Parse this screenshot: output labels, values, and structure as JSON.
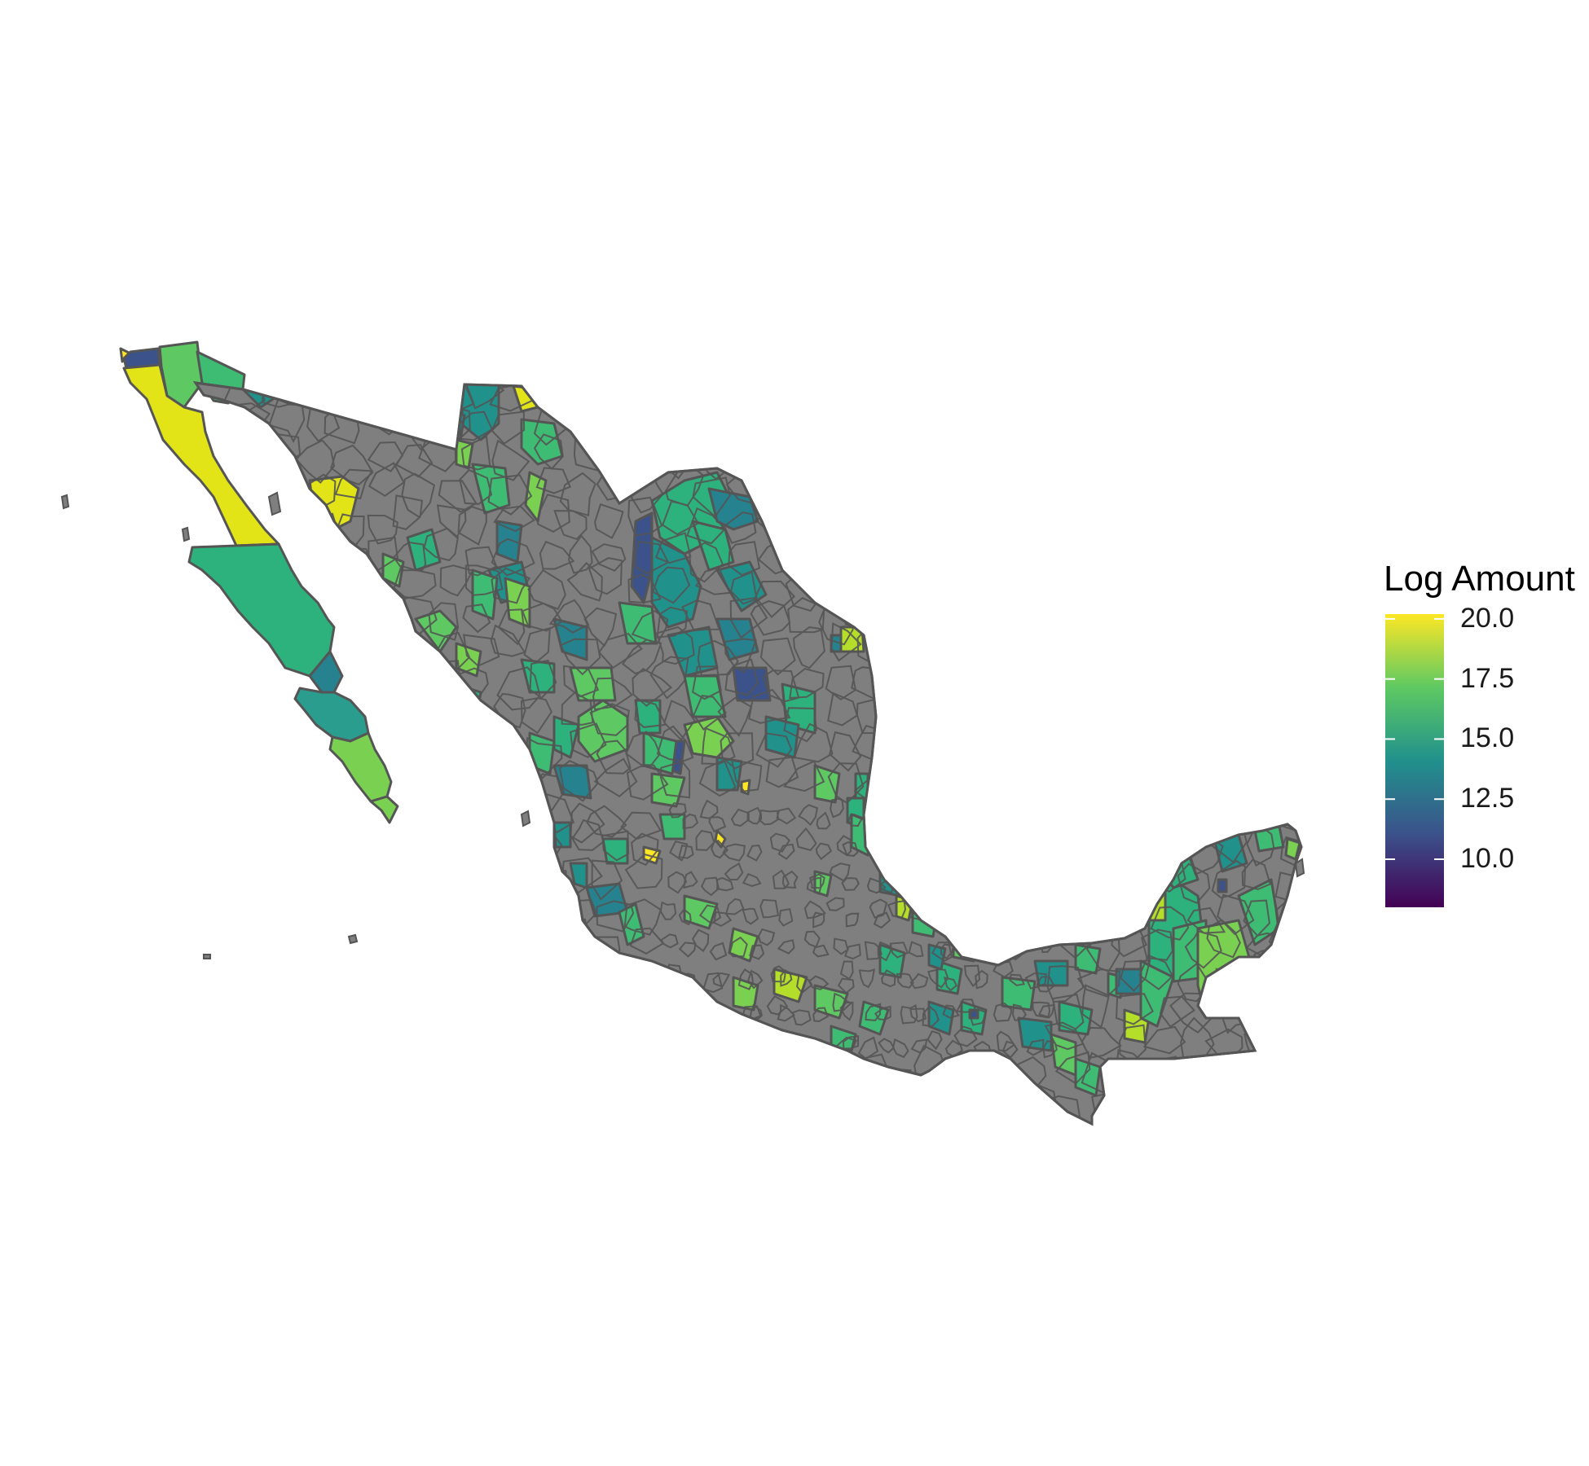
{
  "legend": {
    "title": "Log Amount",
    "ticks": [
      "20.0",
      "17.5",
      "15.0",
      "12.5",
      "10.0"
    ],
    "tick_values": [
      20.0,
      17.5,
      15.0,
      12.5,
      10.0
    ],
    "range": [
      8.0,
      20.2
    ],
    "palette": [
      "#440154",
      "#3b528b",
      "#21918c",
      "#5ec962",
      "#fde725"
    ]
  },
  "map": {
    "region": "Mexico municipalities",
    "missing_color": "#7f7f7f",
    "border_color": "#555555"
  }
}
